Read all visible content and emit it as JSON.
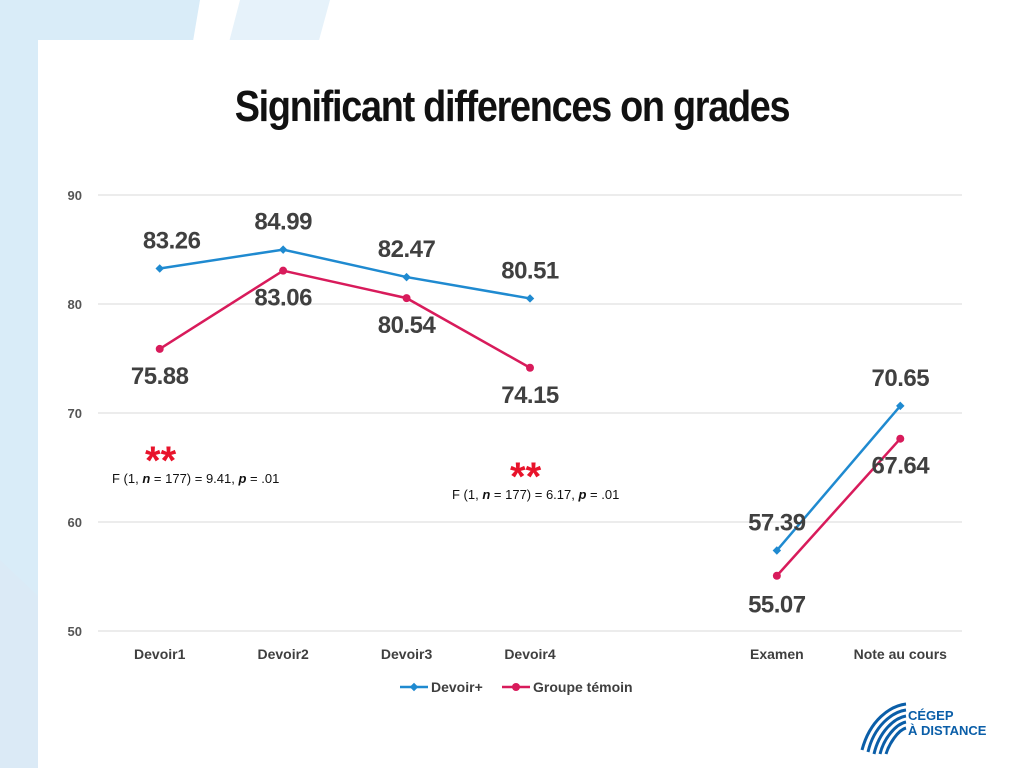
{
  "slide": {
    "title": "Significant differences on grades",
    "logo_line1": "CÉGEP",
    "logo_line2": "À DISTANCE",
    "colors": {
      "series1": "#1f8ad0",
      "series2": "#d81b5b",
      "stars": "#e8132b",
      "logo": "#0a5ea8",
      "backdrop": "#d9ecf8"
    }
  },
  "chart_data": {
    "type": "line",
    "title": "",
    "xlabel": "",
    "ylabel": "",
    "ylim": [
      50,
      90
    ],
    "yticks": [
      "90",
      "80",
      "70",
      "60",
      "50"
    ],
    "grid": true,
    "legend": "bottom",
    "categories": [
      "Devoir1",
      "Devoir2",
      "Devoir3",
      "Devoir4",
      "",
      "Examen",
      "Note au cours"
    ],
    "series": [
      {
        "name": "Devoir+",
        "color": "#1f8ad0",
        "values": [
          83.26,
          84.99,
          82.47,
          80.51,
          null,
          57.39,
          70.65
        ],
        "labels": [
          "83.26",
          "84.99",
          "82.47",
          "80.51",
          "",
          "57.39",
          "70.65"
        ]
      },
      {
        "name": "Groupe témoin",
        "color": "#d81b5b",
        "values": [
          75.88,
          83.06,
          80.54,
          74.15,
          null,
          55.07,
          67.64
        ],
        "labels": [
          "75.88",
          "83.06",
          "80.54",
          "74.15",
          "",
          "55.07",
          "67.64"
        ]
      }
    ],
    "annotations": [
      {
        "stars": "**",
        "pre": "F (1, ",
        "n_var": "n",
        "mid": " = 177) = 9.41, ",
        "p_var": "p",
        "post": " = .01"
      },
      {
        "stars": "**",
        "pre": "F (1, ",
        "n_var": "n",
        "mid": " = 177) = 6.17, ",
        "p_var": "p",
        "post": " = .01"
      }
    ]
  }
}
